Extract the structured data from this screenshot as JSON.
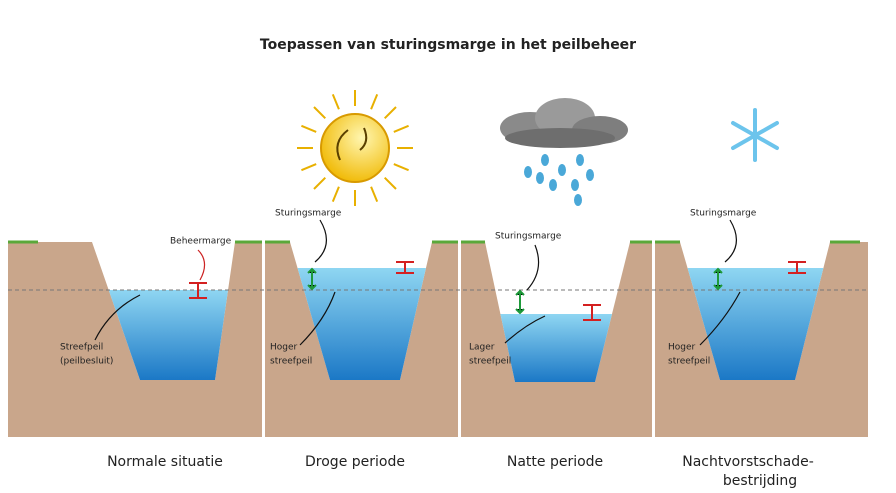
{
  "title": "Toepassen van sturingsmarge in het peilbeheer",
  "panels": [
    {
      "caption": [
        "Normale situatie"
      ],
      "annotations": [
        {
          "lines": [
            "Beheermarge"
          ]
        },
        {
          "lines": [
            "Streefpeil",
            "(peilbesluit)"
          ]
        }
      ]
    },
    {
      "caption": [
        "Droge periode"
      ],
      "annotations": [
        {
          "lines": [
            "Sturingsmarge"
          ]
        },
        {
          "lines": [
            "Hoger",
            "streefpeil"
          ]
        }
      ]
    },
    {
      "caption": [
        "Natte periode"
      ],
      "annotations": [
        {
          "lines": [
            "Sturingsmarge"
          ]
        },
        {
          "lines": [
            "Lager",
            "streefpeil"
          ]
        }
      ]
    },
    {
      "caption": [
        "Nachtvorstschade-",
        "bestrijding"
      ],
      "annotations": [
        {
          "lines": [
            "Sturingsmarge"
          ]
        },
        {
          "lines": [
            "Hoger",
            "streefpeil"
          ]
        }
      ]
    }
  ]
}
